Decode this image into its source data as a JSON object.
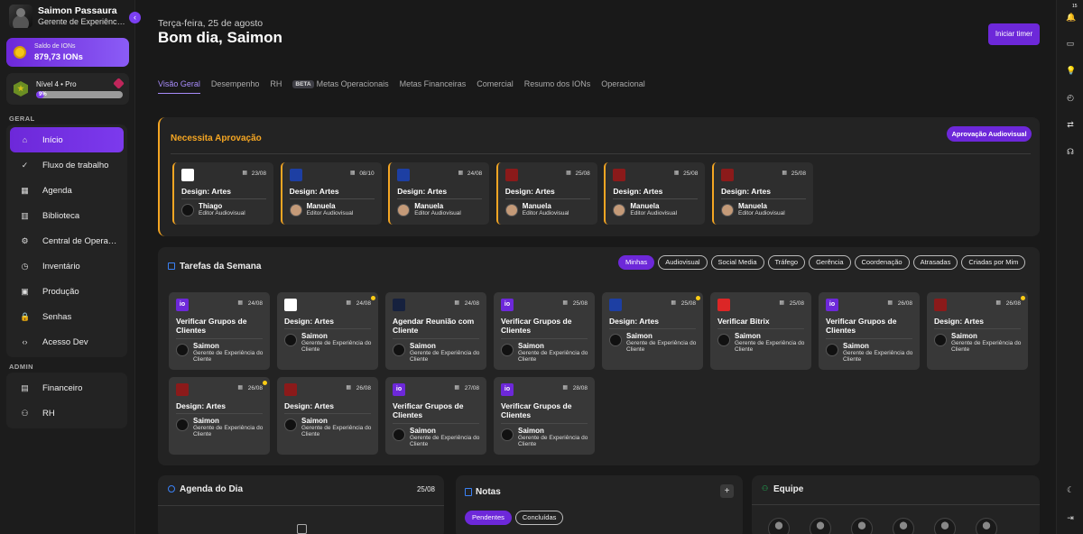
{
  "user": {
    "name": "Saimon Passaura",
    "role": "Gerente de Experiência do Cliente"
  },
  "ions": {
    "label": "Saldo de IONs",
    "value": "879,73 IONs"
  },
  "level": {
    "label": "Nível 4 • Pro",
    "progress_text": "9%",
    "progress": 0.09
  },
  "sidebar": {
    "geral_label": "GERAL",
    "admin_label": "ADMIN",
    "geral_items": [
      {
        "label": "Início",
        "icon": "home-icon",
        "glyph": "⌂"
      },
      {
        "label": "Fluxo de trabalho",
        "icon": "check-icon",
        "glyph": "✓"
      },
      {
        "label": "Agenda",
        "icon": "calendar-icon",
        "glyph": "▦"
      },
      {
        "label": "Biblioteca",
        "icon": "book-icon",
        "glyph": "▥"
      },
      {
        "label": "Central de Operações",
        "icon": "operations-icon",
        "glyph": "⚙"
      },
      {
        "label": "Inventário",
        "icon": "inventory-icon",
        "glyph": "◷"
      },
      {
        "label": "Produção",
        "icon": "production-icon",
        "glyph": "▣"
      },
      {
        "label": "Senhas",
        "icon": "lock-icon",
        "glyph": "🔒"
      },
      {
        "label": "Acesso Dev",
        "icon": "code-icon",
        "glyph": "‹›"
      }
    ],
    "admin_items": [
      {
        "label": "Financeiro",
        "icon": "finance-icon",
        "glyph": "▤"
      },
      {
        "label": "RH",
        "icon": "hr-icon",
        "glyph": "⚇"
      }
    ]
  },
  "header": {
    "date": "Terça-feira, 25 de agosto",
    "greeting": "Bom dia, Saimon",
    "timer_button": "Iniciar timer"
  },
  "tabs": [
    {
      "label": "Visão Geral",
      "active": true
    },
    {
      "label": "Desempenho"
    },
    {
      "label": "RH"
    },
    {
      "label": "Metas Operacionais",
      "badge": "BETA"
    },
    {
      "label": "Metas Financeiras"
    },
    {
      "label": "Comercial"
    },
    {
      "label": "Resumo dos IONs"
    },
    {
      "label": "Operacional"
    }
  ],
  "approval": {
    "title": "Necessita Aprovação",
    "button": "Aprovação Audiovisual",
    "cards": [
      {
        "logo": "#ffffff",
        "date": "23/08",
        "title": "Design: Artes",
        "person": "Thiago",
        "role": "Editor Audiovisual",
        "female": false
      },
      {
        "logo": "#1d3fa3",
        "date": "08/10",
        "title": "Design: Artes",
        "person": "Manuela",
        "role": "Editor Audiovisual",
        "female": true
      },
      {
        "logo": "#1d3fa3",
        "date": "24/08",
        "title": "Design: Artes",
        "person": "Manuela",
        "role": "Editor Audiovisual",
        "female": true
      },
      {
        "logo": "#8b1a1a",
        "date": "25/08",
        "title": "Design: Artes",
        "person": "Manuela",
        "role": "Editor Audiovisual",
        "female": true
      },
      {
        "logo": "#8b1a1a",
        "date": "25/08",
        "title": "Design: Artes",
        "person": "Manuela",
        "role": "Editor Audiovisual",
        "female": true
      },
      {
        "logo": "#8b1a1a",
        "date": "25/08",
        "title": "Design: Artes",
        "person": "Manuela",
        "role": "Editor Audiovisual",
        "female": true
      }
    ]
  },
  "tasks": {
    "title": "Tarefas da Semana",
    "filters": [
      "Minhas",
      "Audiovisual",
      "Social Media",
      "Tráfego",
      "Gerência",
      "Coordenação",
      "Atrasadas",
      "Criadas por Mim"
    ],
    "cards": [
      {
        "logo": "#6d28d9",
        "date": "24/08",
        "title": "Verificar Grupos de Clientes",
        "two_lines": true,
        "person": "Saimon",
        "role": "Gerente de Experiência do Cliente",
        "dot": false
      },
      {
        "logo": "#ffffff",
        "date": "24/08",
        "title": "Design: Artes",
        "two_lines": false,
        "person": "Saimon",
        "role": "Gerente de Experiência do Cliente",
        "dot": true
      },
      {
        "logo": "#16213e",
        "date": "24/08",
        "title": "Agendar Reunião com Cliente",
        "two_lines": true,
        "person": "Saimon",
        "role": "Gerente de Experiência do Cliente",
        "dot": false
      },
      {
        "logo": "#6d28d9",
        "date": "25/08",
        "title": "Verificar Grupos de Clientes",
        "two_lines": true,
        "person": "Saimon",
        "role": "Gerente de Experiência do Cliente",
        "dot": false
      },
      {
        "logo": "#1d3fa3",
        "date": "25/08",
        "title": "Design: Artes",
        "two_lines": false,
        "person": "Saimon",
        "role": "Gerente de Experiência do Cliente",
        "dot": true
      },
      {
        "logo": "#dc2626",
        "date": "25/08",
        "title": "Verificar Bitrix",
        "two_lines": false,
        "person": "Saimon",
        "role": "Gerente de Experiência do Cliente",
        "dot": false
      },
      {
        "logo": "#6d28d9",
        "date": "26/08",
        "title": "Verificar Grupos de Clientes",
        "two_lines": true,
        "person": "Saimon",
        "role": "Gerente de Experiência do Cliente",
        "dot": false
      },
      {
        "logo": "#8b1a1a",
        "date": "26/08",
        "title": "Design: Artes",
        "two_lines": false,
        "person": "Saimon",
        "role": "Gerente de Experiência do Cliente",
        "dot": true
      },
      {
        "logo": "#8b1a1a",
        "date": "26/08",
        "title": "Design: Artes",
        "two_lines": false,
        "person": "Saimon",
        "role": "Gerente de Experiência do Cliente",
        "dot": true
      },
      {
        "logo": "#8b1a1a",
        "date": "26/08",
        "title": "Design: Artes",
        "two_lines": false,
        "person": "Saimon",
        "role": "Gerente de Experiência do Cliente",
        "dot": false
      },
      {
        "logo": "#6d28d9",
        "date": "27/08",
        "title": "Verificar Grupos de Clientes",
        "two_lines": true,
        "person": "Saimon",
        "role": "Gerente de Experiência do Cliente",
        "dot": false
      },
      {
        "logo": "#6d28d9",
        "date": "28/08",
        "title": "Verificar Grupos de Clientes",
        "two_lines": true,
        "person": "Saimon",
        "role": "Gerente de Experiência do Cliente",
        "dot": false
      }
    ]
  },
  "agenda": {
    "title": "Agenda do Dia",
    "date": "25/08"
  },
  "notes": {
    "title": "Notas",
    "add": "+",
    "tabs": [
      "Pendentes",
      "Concluídas"
    ]
  },
  "team": {
    "title": "Equipe",
    "member_count": 6
  },
  "rail_icons": [
    "notifications-icon",
    "inbox-icon",
    "lightbulb-icon",
    "timer-icon",
    "transfer-icon",
    "headset-icon",
    "moon-icon",
    "logout-icon"
  ],
  "rail_badge": "15"
}
